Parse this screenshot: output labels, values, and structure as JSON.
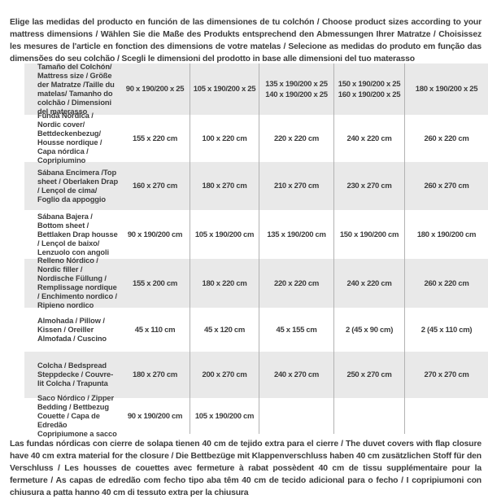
{
  "intro": "Elige las medidas del producto en función de las dimensiones de tu colchón / Choose product sizes according to your mattress dimensions / Wählen Sie die Maße des Produkts entsprechend den Abmessungen Ihrer Matratze / Choisissez les mesures de l'article en fonction des dimensions de votre matelas / Selecione as medidas do produto em função das dimensões do seu colchão / Scegli le dimensioni del prodotto in base alle dimensioni del tuo materasso",
  "table": {
    "header_label": "Tamaño del Colchón/ Mattress size / Größe der Matratze /Taille du matelas/ Tamanho do colchão / Dimensioni del materasso",
    "columns": [
      "90 x 190/200 x 25",
      "105 x 190/200 x 25",
      "135 x 190/200 x 25\n140 x 190/200 x 25",
      "150 x 190/200 x 25\n160 x 190/200 x 25",
      "180 x 190/200 x 25"
    ],
    "rows": [
      {
        "label": "Funda Nórdica / Nordic cover/ Bettdeckenbezug/ Housse nordique / Capa nórdica / Copripiumino",
        "values": [
          "155 x 220 cm",
          "100 x 220 cm",
          "220 x 220 cm",
          "240 x 220 cm",
          "260 x 220 cm"
        ]
      },
      {
        "label": "Sábana Encimera /Top sheet / Oberlaken Drap / Lençol de cima/ Foglio da appoggio",
        "values": [
          "160 x 270 cm",
          "180 x 270 cm",
          "210 x 270 cm",
          "230 x 270 cm",
          "260 x 270 cm"
        ]
      },
      {
        "label": "Sábana Bajera / Bottom sheet / Bettlaken Drap housse / Lençol de baixo/ Lenzuolo con angoli",
        "values": [
          "90 x 190/200 cm",
          "105 x 190/200 cm",
          "135 x 190/200 cm",
          "150 x 190/200 cm",
          "180 x 190/200 cm"
        ]
      },
      {
        "label": "Relleno Nórdico / Nordic filler / Nordische Füllung / Remplissage nordique / Enchimento nordico / Ripieno nordico",
        "values": [
          "155 x 200 cm",
          "180 x 220 cm",
          "220 x 220 cm",
          "240 x 220 cm",
          "260 x 220 cm"
        ]
      },
      {
        "label": "Almohada / Pillow / Kissen / Oreiller Almofada / Cuscino",
        "values": [
          "45 x 110 cm",
          "45 x 120 cm",
          "45 x 155 cm",
          "2 (45 x 90 cm)",
          "2 (45 x 110 cm)"
        ]
      },
      {
        "label": "Colcha / Bedspread Steppdecke / Couvre-lit Colcha / Trapunta",
        "values": [
          "180 x 270 cm",
          "200 x 270 cm",
          "240 x 270 cm",
          "250 x 270 cm",
          "270 x 270 cm"
        ]
      },
      {
        "label": "Saco Nórdico / Zipper Bedding / Bettbezug Couette / Capa de Edredão Copripiumone a sacco",
        "values": [
          "90 x 190/200 cm",
          "105 x 190/200 cm",
          "",
          "",
          ""
        ]
      }
    ]
  },
  "footnote": "Las fundas nórdicas con cierre de solapa tienen 40 cm de tejido extra para el cierre / The duvet covers with flap closure have 40 cm extra material for the closure / Die Bettbezüge mit Klappenverschluss haben 40 cm zusätzlichen Stoff für den Verschluss / Les housses de couettes avec fermeture à rabat possèdent 40 cm de tissu supplémentaire pour la fermeture / As capas de edredão com fecho tipo aba têm 40 cm de tecido adicional para o fecho / I copripiumoni con chiusura a patta hanno 40 cm di tessuto extra per la chiusura"
}
